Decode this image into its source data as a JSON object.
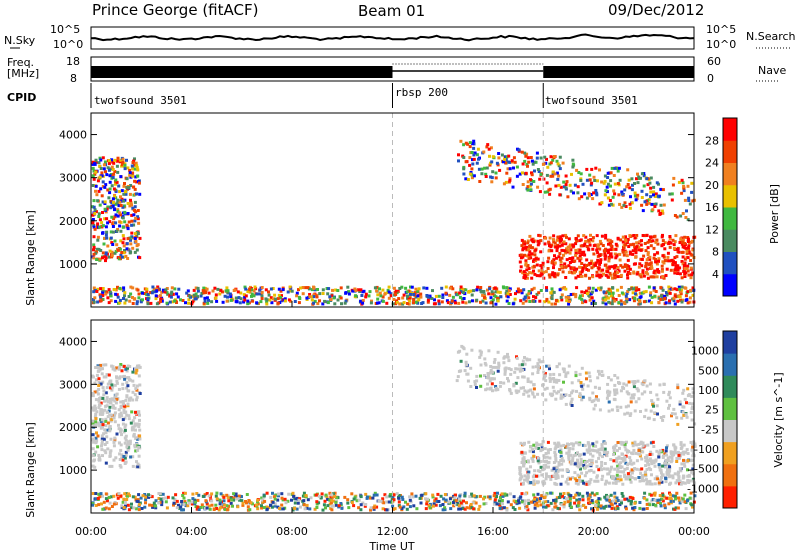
{
  "header": {
    "station": "Prince George (fitACF)",
    "beam": "Beam 01",
    "date": "09/Dec/2012"
  },
  "strip_labels": {
    "nsky": "N.Sky",
    "nsearch": "N.Search",
    "freq_line1": "Freq.",
    "freq_line2": "[MHz]",
    "nave": "Nave",
    "cpid": "CPID",
    "nsky_ticks": [
      "10^5",
      "10^0"
    ],
    "nsearch_ticks": [
      "10^5",
      "10^0"
    ],
    "freq_ticks": [
      "18",
      "8"
    ],
    "nave_ticks": [
      "60",
      "0"
    ]
  },
  "cpid_segments": [
    {
      "label": "twofsound 3501",
      "start_h": 0,
      "end_h": 12
    },
    {
      "label": "rbsp 200",
      "start_h": 12,
      "end_h": 18
    },
    {
      "label": "twofsound 3501",
      "start_h": 18,
      "end_h": 24
    }
  ],
  "chart_data": [
    {
      "type": "heatmap",
      "name": "power",
      "xlabel": "",
      "ylabel": "Slant Range [km]",
      "xlim": [
        0,
        24
      ],
      "ylim": [
        0,
        4500
      ],
      "yticks": [
        "1000",
        "2000",
        "3000",
        "4000"
      ],
      "colorbar_label": "Power [dB]",
      "colorbar_ticks": [
        "4",
        "8",
        "12",
        "16",
        "20",
        "24",
        "28"
      ],
      "colors": [
        "#0000ff",
        "#2050c0",
        "#4a8a60",
        "#40b840",
        "#e8c000",
        "#f08020",
        "#f04000",
        "#ff0000"
      ],
      "features": [
        {
          "kind": "patch",
          "t0": 0.0,
          "t1": 1.9,
          "r0": 1100,
          "r1": 3500,
          "level": "mixed"
        },
        {
          "kind": "ground",
          "t0": 0.0,
          "t1": 24.0,
          "r0": 100,
          "r1": 500,
          "level": "mixed"
        },
        {
          "kind": "band",
          "t0": 17.0,
          "t1": 24.0,
          "r0": 700,
          "r1": 1700,
          "level": "high"
        },
        {
          "kind": "arc",
          "t0": 14.5,
          "t1": 24.0,
          "r0": 1800,
          "r1": 3500,
          "level": "mixed"
        }
      ]
    },
    {
      "type": "heatmap",
      "name": "velocity",
      "xlabel": "Time UT",
      "ylabel": "Slant Range [km]",
      "xlim": [
        0,
        24
      ],
      "ylim": [
        0,
        4500
      ],
      "xticks": [
        "00:00",
        "04:00",
        "08:00",
        "12:00",
        "16:00",
        "20:00",
        "00:00"
      ],
      "yticks": [
        "1000",
        "2000",
        "3000",
        "4000"
      ],
      "colorbar_label": "Velocity [m s^-1]",
      "colorbar_ticks": [
        "1000",
        "500",
        "100",
        "25",
        "-25",
        "-100",
        "-500",
        "-1000"
      ],
      "colors": [
        "#1f3fa0",
        "#2a6fb0",
        "#2f8a5a",
        "#5fc040",
        "#c8c8c8",
        "#f0a020",
        "#f07010",
        "#ff2000"
      ],
      "features": [
        {
          "kind": "patch",
          "t0": 0.0,
          "t1": 1.9,
          "r0": 1100,
          "r1": 3500,
          "level": "grey"
        },
        {
          "kind": "ground",
          "t0": 0.0,
          "t1": 24.0,
          "r0": 100,
          "r1": 500,
          "level": "mixed"
        },
        {
          "kind": "band",
          "t0": 17.0,
          "t1": 24.0,
          "r0": 700,
          "r1": 1700,
          "level": "grey"
        },
        {
          "kind": "arc",
          "t0": 14.5,
          "t1": 24.0,
          "r0": 1800,
          "r1": 3500,
          "level": "grey"
        }
      ]
    }
  ]
}
